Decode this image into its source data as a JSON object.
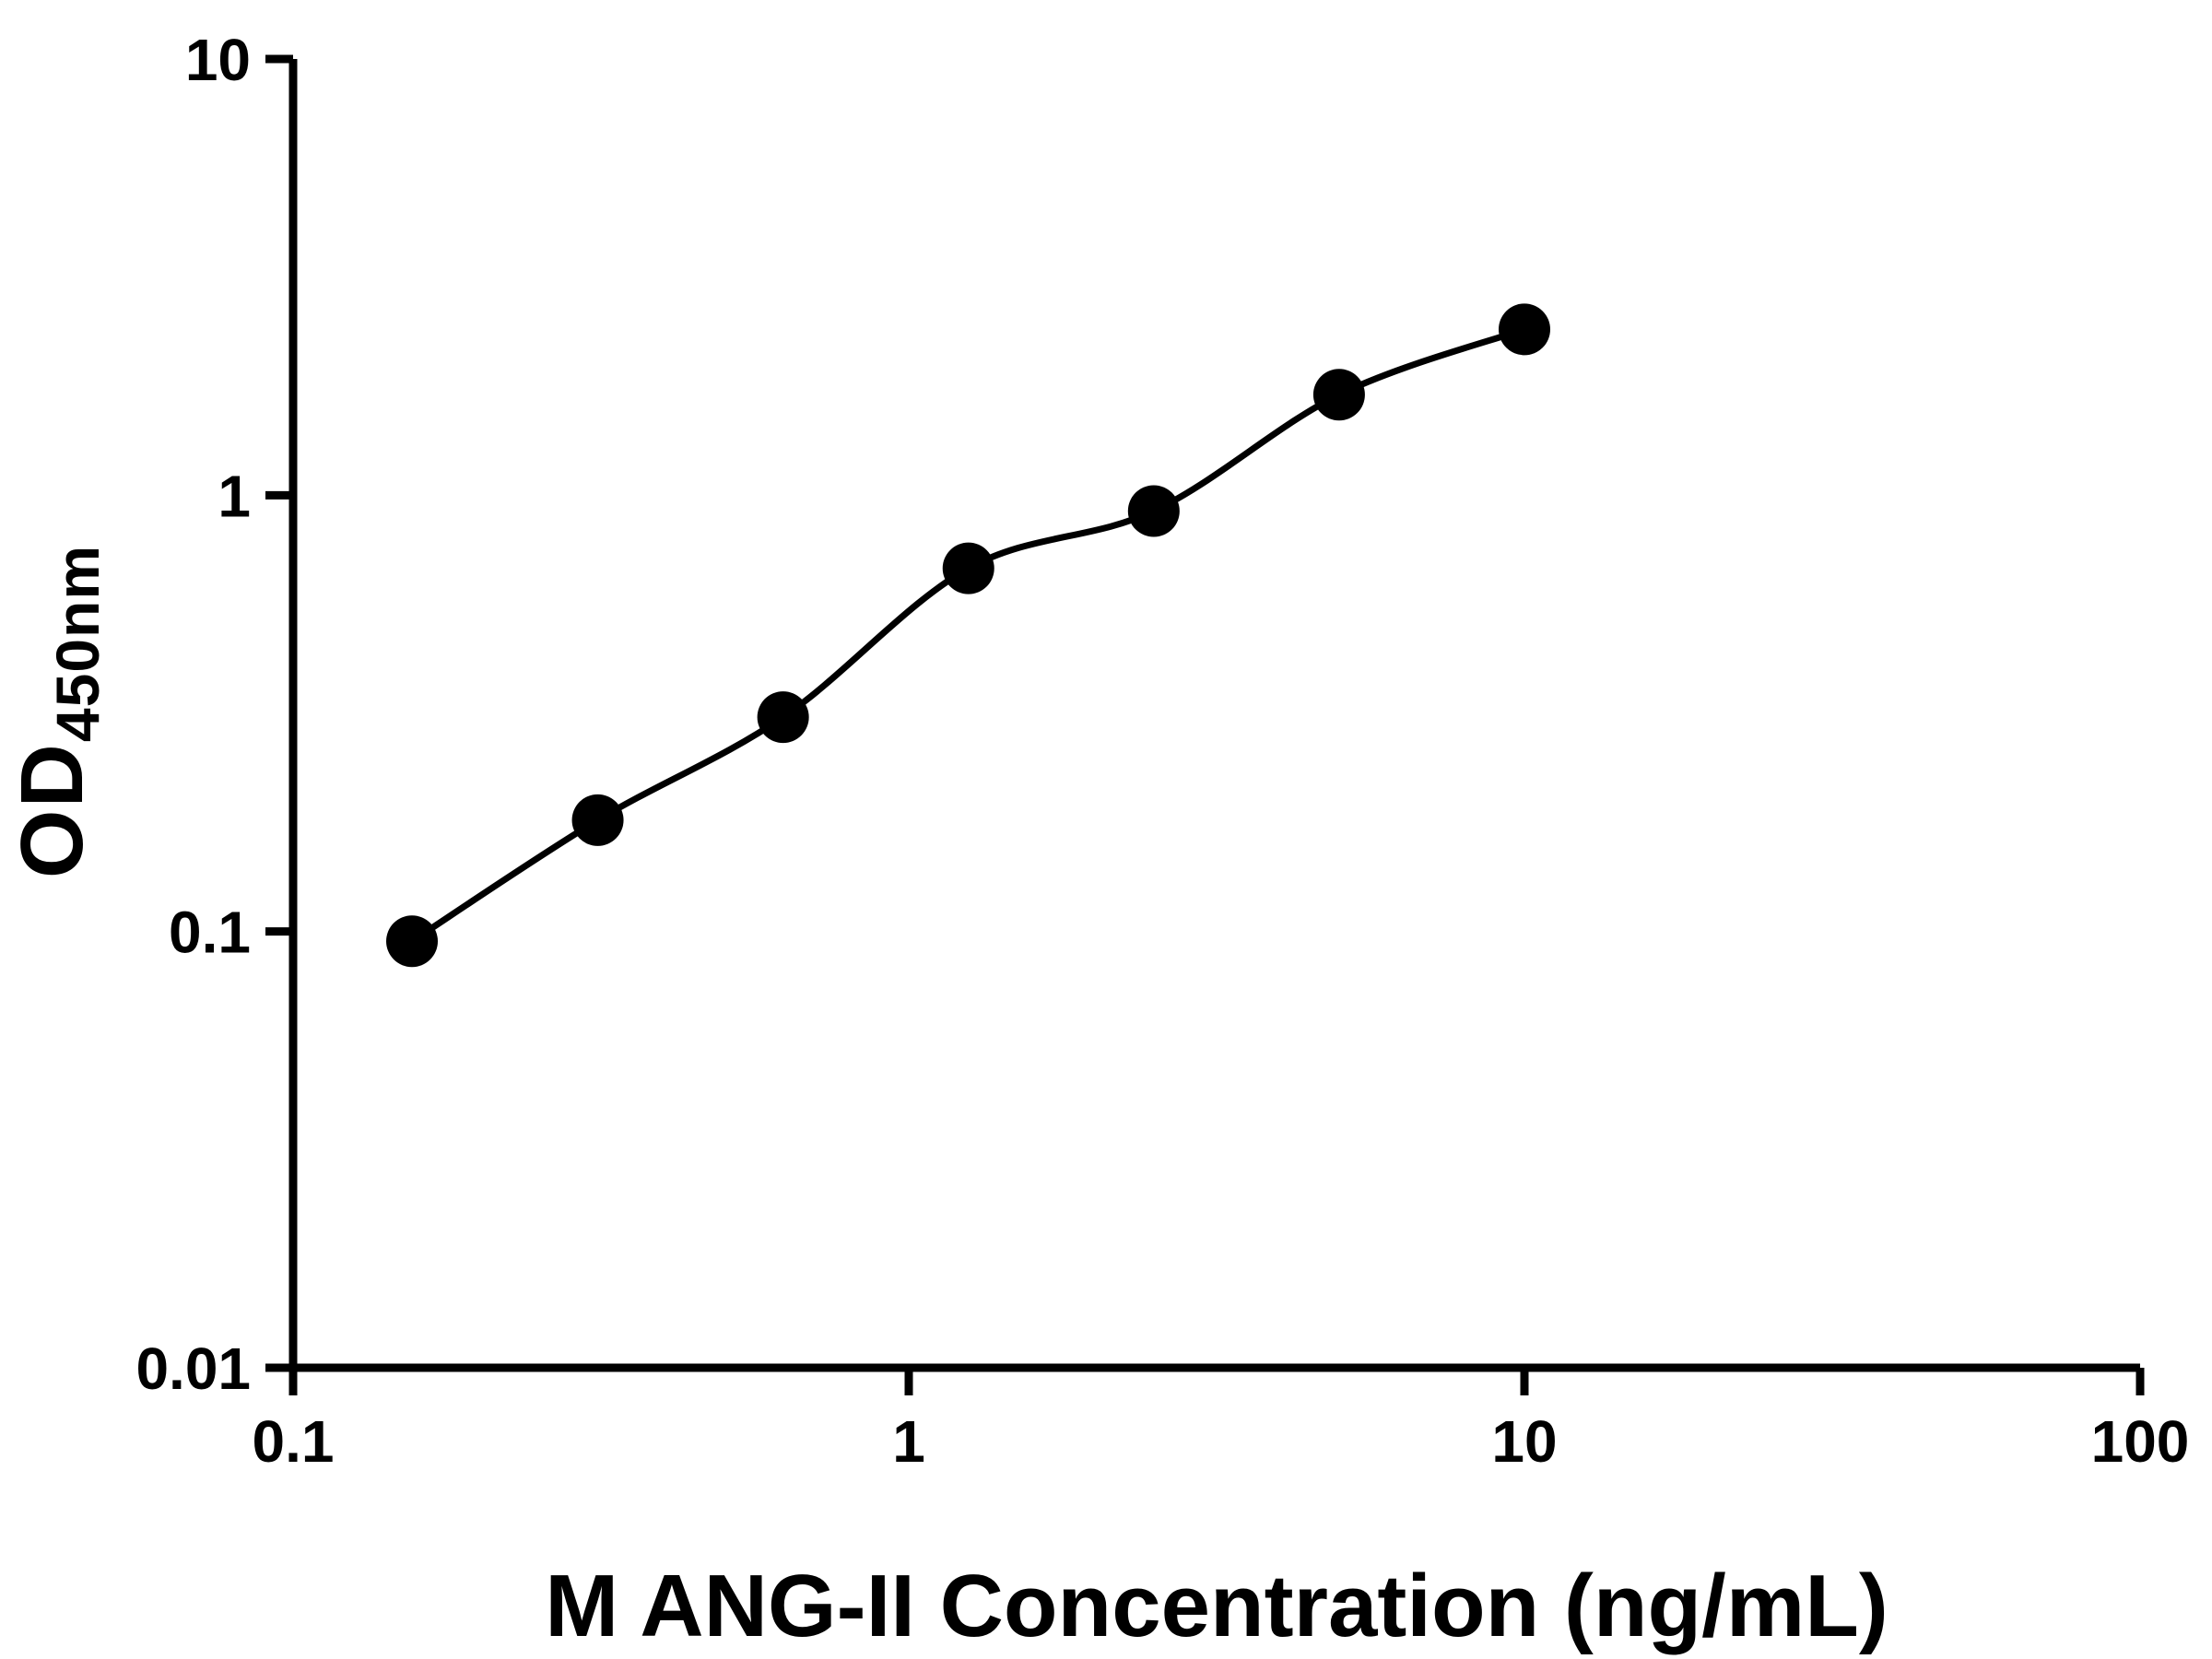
{
  "chart_data": {
    "type": "scatter",
    "draw_line": true,
    "x": [
      0.156,
      0.3125,
      0.625,
      1.25,
      2.5,
      5,
      10
    ],
    "y": [
      0.095,
      0.18,
      0.31,
      0.68,
      0.92,
      1.7,
      2.4
    ],
    "xlabel": "M ANG-II Concentration (ng/mL)",
    "ylabel_main": "OD",
    "ylabel_sub": "450nm",
    "x_scale": "log",
    "y_scale": "log",
    "xlim": [
      0.1,
      100
    ],
    "ylim": [
      0.01,
      10
    ],
    "x_ticks": [
      {
        "v": 0.1,
        "label": "0.1"
      },
      {
        "v": 1,
        "label": "1"
      },
      {
        "v": 10,
        "label": "10"
      },
      {
        "v": 100,
        "label": "100"
      }
    ],
    "y_ticks": [
      {
        "v": 0.01,
        "label": "0.01"
      },
      {
        "v": 0.1,
        "label": "0.1"
      },
      {
        "v": 1,
        "label": "1"
      },
      {
        "v": 10,
        "label": "10"
      }
    ],
    "marker_color": "#000000",
    "line_color": "#000000",
    "axis_color": "#000000",
    "background": "#ffffff",
    "legend": "none",
    "grid": "off",
    "title": ""
  }
}
